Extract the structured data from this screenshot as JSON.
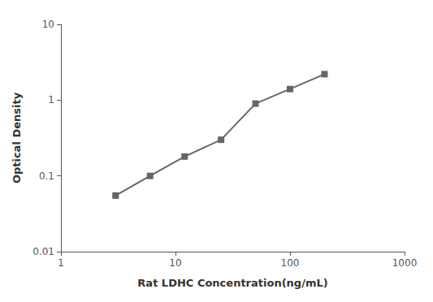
{
  "chart_data": {
    "type": "line",
    "x": [
      3,
      6,
      12,
      25,
      50,
      100,
      200
    ],
    "values": [
      0.055,
      0.1,
      0.18,
      0.3,
      0.9,
      1.4,
      2.2
    ],
    "xlabel": "Rat LDHC Concentration(ng/mL)",
    "ylabel": "Optical Density",
    "log": true,
    "xlim": [
      1,
      1000
    ],
    "ylim": [
      0.01,
      10
    ],
    "xticks": [
      1,
      10,
      100,
      1000
    ],
    "yticks": [
      0.01,
      0.1,
      1,
      10
    ],
    "color": "#666666",
    "marker": "square",
    "grid": false
  }
}
